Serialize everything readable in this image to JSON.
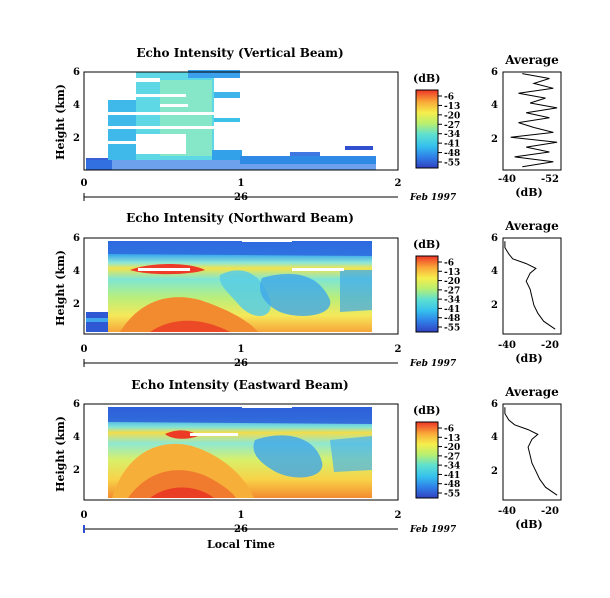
{
  "chart_data": [
    {
      "type": "heatmap",
      "id": "vertical",
      "title": "Echo Intensity (Vertical Beam)",
      "ylabel": "Height (km)",
      "ylim": [
        0,
        6
      ],
      "yticks": [
        "2",
        "4",
        "6"
      ],
      "xlim": [
        0,
        2
      ],
      "xticks": [
        "0",
        "1",
        "2"
      ],
      "date_day": "26",
      "date_label": "Feb 1997",
      "colorbar": {
        "unit": "(dB)",
        "ticks": [
          "-6",
          "-13",
          "-20",
          "-27",
          "-34",
          "-41",
          "-48",
          "-55"
        ],
        "range": [
          -55,
          -6
        ]
      },
      "profile": {
        "title": "Average",
        "xlabel": "(dB)",
        "xticks": [
          "-40",
          "-52"
        ],
        "xlim": [
          -40,
          -55
        ],
        "heights": [
          0.2,
          0.5,
          0.8,
          1.1,
          1.4,
          1.7,
          2.0,
          2.3,
          2.6,
          2.9,
          3.2,
          3.5,
          3.8,
          4.1,
          4.4,
          4.7,
          5.0,
          5.3,
          5.6,
          5.9
        ],
        "values": [
          -45,
          -53,
          -43,
          -52,
          -46,
          -54,
          -42,
          -53,
          -48,
          -44,
          -52,
          -46,
          -54,
          -47,
          -51,
          -44,
          -53,
          -48,
          -52,
          -45
        ]
      }
    },
    {
      "type": "heatmap",
      "id": "northward",
      "title": "Echo Intensity (Northward Beam)",
      "ylabel": "Height (km)",
      "ylim": [
        0,
        6
      ],
      "yticks": [
        "2",
        "4",
        "6"
      ],
      "xlim": [
        0,
        2
      ],
      "xticks": [
        "0",
        "1",
        "2"
      ],
      "date_day": "26",
      "date_label": "Feb 1997",
      "colorbar": {
        "unit": "(dB)",
        "ticks": [
          "-6",
          "-13",
          "-20",
          "-27",
          "-34",
          "-41",
          "-48",
          "-55"
        ],
        "range": [
          -55,
          -6
        ]
      },
      "profile": {
        "title": "Average",
        "xlabel": "(dB)",
        "xticks": [
          "-40",
          "-20"
        ],
        "xlim": [
          -45,
          -15
        ],
        "heights": [
          0.3,
          0.8,
          1.3,
          1.8,
          2.3,
          2.8,
          3.3,
          3.8,
          4.1,
          4.4,
          4.7,
          5.0,
          5.4,
          5.8
        ],
        "values": [
          -18,
          -24,
          -27,
          -29,
          -30,
          -31,
          -33,
          -31,
          -28,
          -33,
          -40,
          -42,
          -44,
          -44
        ]
      }
    },
    {
      "type": "heatmap",
      "id": "eastward",
      "title": "Echo Intensity (Eastward Beam)",
      "ylabel": "Height (km)",
      "ylim": [
        0,
        6
      ],
      "yticks": [
        "2",
        "4",
        "6"
      ],
      "xlim": [
        0,
        2
      ],
      "xticks": [
        "0",
        "1",
        "2"
      ],
      "xlabel": "Local Time",
      "date_day": "26",
      "date_label": "Feb 1997",
      "colorbar": {
        "unit": "(dB)",
        "ticks": [
          "-6",
          "-13",
          "-20",
          "-27",
          "-34",
          "-41",
          "-48",
          "-55"
        ],
        "range": [
          -55,
          -6
        ]
      },
      "profile": {
        "title": "Average",
        "xlabel": "(dB)",
        "xticks": [
          "-40",
          "-20"
        ],
        "xlim": [
          -45,
          -15
        ],
        "heights": [
          0.3,
          0.8,
          1.3,
          1.8,
          2.3,
          2.8,
          3.3,
          3.8,
          4.1,
          4.4,
          4.7,
          5.0,
          5.4,
          5.8
        ],
        "values": [
          -17,
          -23,
          -26,
          -28,
          -30,
          -31,
          -32,
          -30,
          -27,
          -32,
          -39,
          -42,
          -44,
          -44
        ]
      }
    }
  ]
}
